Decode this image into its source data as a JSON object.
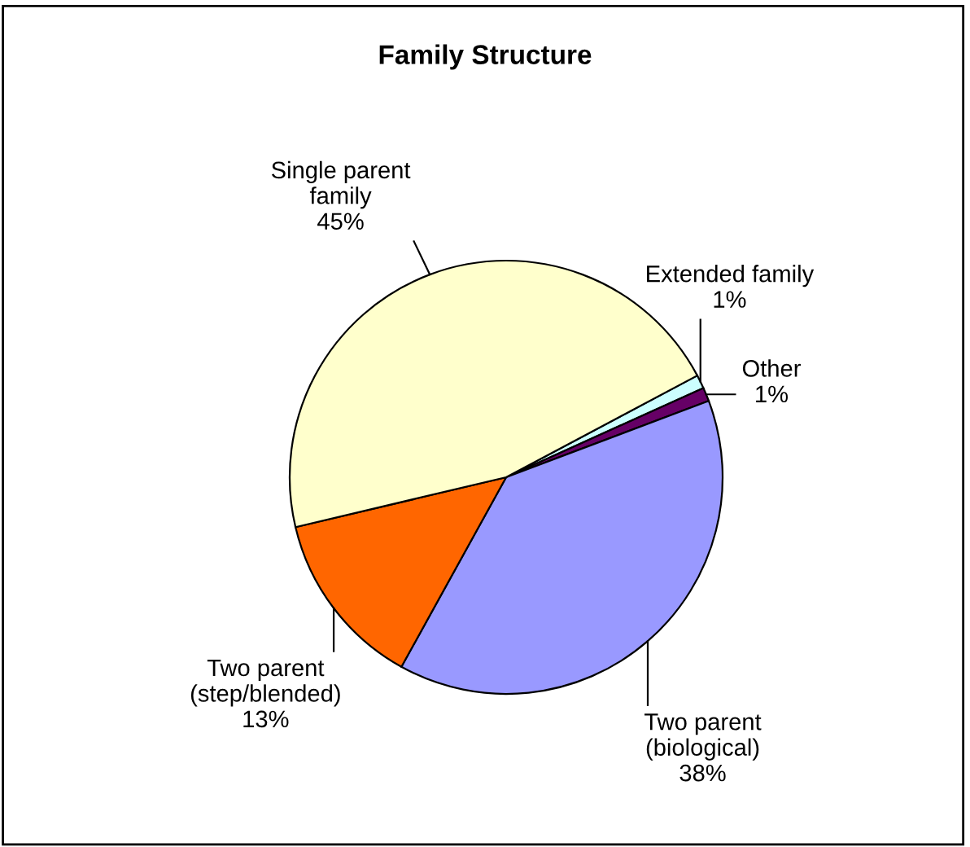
{
  "chart_data": {
    "type": "pie",
    "title": "Family Structure",
    "categories": [
      "Extended family",
      "Other",
      "Two parent (biological)",
      "Two parent (step/blended)",
      "Single parent family"
    ],
    "values": [
      1,
      1,
      38,
      13,
      45
    ],
    "colors": [
      "#ccffff",
      "#660066",
      "#9999ff",
      "#ff6600",
      "#ffffcc"
    ],
    "value_labels": [
      "1%",
      "1%",
      "38%",
      "13%",
      "45%"
    ]
  }
}
